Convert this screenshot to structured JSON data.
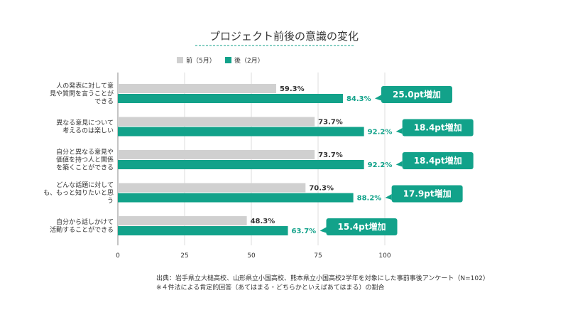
{
  "chart_data": {
    "type": "bar",
    "orientation": "horizontal",
    "title": "プロジェクト前後の意識の変化",
    "categories": [
      [
        "人の発表に対して意",
        "見や質問を言うことが",
        "できる"
      ],
      [
        "異なる意見について",
        "考えるのは楽しい"
      ],
      [
        "自分と異なる意見や",
        "価値を持つ人と関係",
        "を築くことができる"
      ],
      [
        "どんな話題に対して",
        "も、もっと知りたいと思",
        "う"
      ],
      [
        "自分から話しかけて",
        "活動することができる"
      ]
    ],
    "series": [
      {
        "name": "前（5月）",
        "values": [
          59.3,
          73.7,
          73.7,
          70.3,
          48.3
        ],
        "color": "#d0d0d0"
      },
      {
        "name": "後（2月）",
        "values": [
          84.3,
          92.2,
          92.2,
          88.2,
          63.7
        ],
        "color": "#12a28a"
      }
    ],
    "value_labels_before": [
      "59.3%",
      "73.7%",
      "73.7%",
      "70.3%",
      "48.3%"
    ],
    "value_labels_after": [
      "84.3%",
      "92.2%",
      "92.2%",
      "88.2%",
      "63.7%"
    ],
    "callouts": [
      "25.0pt増加",
      "18.4pt増加",
      "18.4pt増加",
      "17.9pt増加",
      "15.4pt増加"
    ],
    "xlim": [
      0,
      100
    ],
    "xticks": [
      "0",
      "25",
      "50",
      "75",
      "100"
    ],
    "legend_position": "top",
    "grid": true,
    "accent_color": "#12a28a"
  },
  "source": {
    "line1": "出典：岩手県立大槌高校、山形県立小国高校、熊本県立小国高校2学年を対象にした事前事後アンケート（N=102）",
    "line2": "※４件法による肯定的回答（あてはまる・どちらかといえばあてはまる）の割合"
  }
}
